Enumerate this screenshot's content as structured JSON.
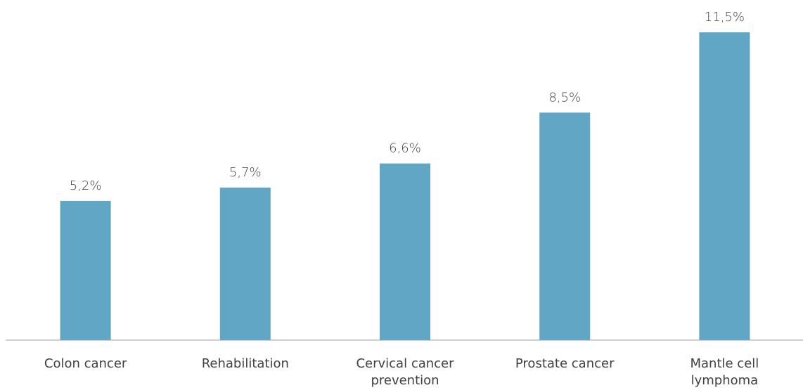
{
  "chart_data": {
    "type": "bar",
    "categories": [
      "Colon cancer",
      "Rehabilitation",
      "Cervical cancer prevention",
      "Prostate cancer",
      "Mantle cell lymphoma"
    ],
    "values": [
      5.2,
      5.7,
      6.6,
      8.5,
      11.5
    ],
    "value_labels": [
      "5,2%",
      "5,7%",
      "6,6%",
      "8,5%",
      "11,5%"
    ],
    "color": "#61a6c4"
  }
}
